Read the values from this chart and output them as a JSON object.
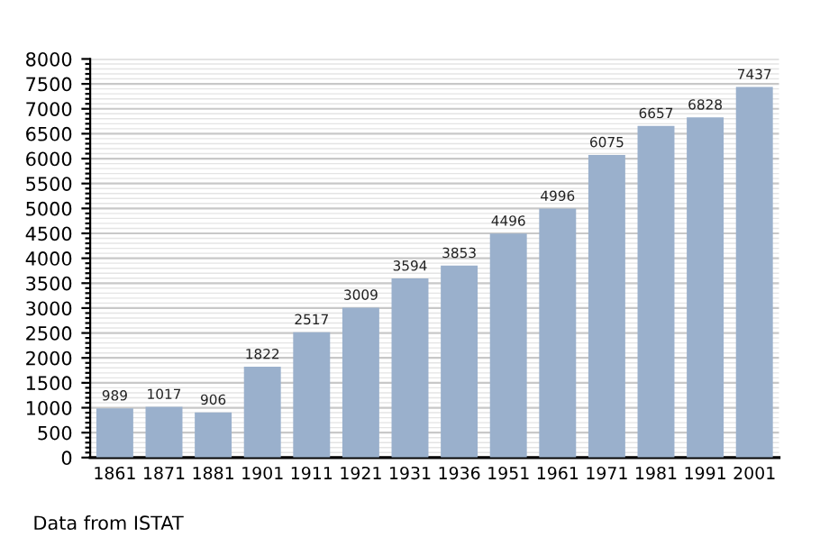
{
  "chart_data": {
    "type": "bar",
    "categories": [
      "1861",
      "1871",
      "1881",
      "1901",
      "1911",
      "1921",
      "1931",
      "1936",
      "1951",
      "1961",
      "1971",
      "1981",
      "1991",
      "2001"
    ],
    "values": [
      989,
      1017,
      906,
      1822,
      2517,
      3009,
      3594,
      3853,
      4496,
      4996,
      6075,
      6657,
      6828,
      7437
    ],
    "color": "#9ab0cc",
    "data_labels": true,
    "ylim": [
      0,
      8000
    ],
    "yticks": [
      0,
      {
        "value": 100,
        "label": null
      },
      {
        "value": 200,
        "label": null
      },
      {
        "value": 300,
        "label": null
      },
      {
        "value": 400,
        "label": null
      },
      500,
      {
        "value": 600,
        "label": null
      },
      {
        "value": 700,
        "label": null
      },
      {
        "value": 800,
        "label": null
      },
      {
        "value": 900,
        "label": null
      },
      1000,
      {
        "value": 1100,
        "label": null
      },
      {
        "value": 1200,
        "label": null
      },
      {
        "value": 1300,
        "label": null
      },
      {
        "value": 1400,
        "label": null
      },
      1500,
      {
        "value": 1600,
        "label": null
      },
      {
        "value": 1700,
        "label": null
      },
      {
        "value": 1800,
        "label": null
      },
      {
        "value": 1900,
        "label": null
      },
      2000,
      {
        "value": 2100,
        "label": null
      },
      {
        "value": 2200,
        "label": null
      },
      {
        "value": 2300,
        "label": null
      },
      {
        "value": 2400,
        "label": null
      },
      2500,
      {
        "value": 2600,
        "label": null
      },
      {
        "value": 2700,
        "label": null
      },
      {
        "value": 2800,
        "label": null
      },
      {
        "value": 2900,
        "label": null
      },
      3000,
      {
        "value": 3100,
        "label": null
      },
      {
        "value": 3200,
        "label": null
      },
      {
        "value": 3300,
        "label": null
      },
      {
        "value": 3400,
        "label": null
      },
      3500,
      {
        "value": 3600,
        "label": null
      },
      {
        "value": 3700,
        "label": null
      },
      {
        "value": 3800,
        "label": null
      },
      {
        "value": 3900,
        "label": null
      },
      4000,
      {
        "value": 4100,
        "label": null
      },
      {
        "value": 4200,
        "label": null
      },
      {
        "value": 4300,
        "label": null
      },
      {
        "value": 4400,
        "label": null
      },
      4500,
      {
        "value": 4600,
        "label": null
      },
      {
        "value": 4700,
        "label": null
      },
      {
        "value": 4800,
        "label": null
      },
      {
        "value": 4900,
        "label": null
      },
      5000,
      {
        "value": 5100,
        "label": null
      },
      {
        "value": 5200,
        "label": null
      },
      {
        "value": 5300,
        "label": null
      },
      {
        "value": 5400,
        "label": null
      },
      5500,
      {
        "value": 5600,
        "label": null
      },
      {
        "value": 5700,
        "label": null
      },
      {
        "value": 5800,
        "label": null
      },
      {
        "value": 5900,
        "label": null
      },
      6000,
      {
        "value": 6100,
        "label": null
      },
      {
        "value": 6200,
        "label": null
      },
      {
        "value": 6300,
        "label": null
      },
      {
        "value": 6400,
        "label": null
      },
      6500,
      {
        "value": 6600,
        "label": null
      },
      {
        "value": 6700,
        "label": null
      },
      {
        "value": 6800,
        "label": null
      },
      {
        "value": 6900,
        "label": null
      },
      7000,
      {
        "value": 7100,
        "label": null
      },
      {
        "value": 7200,
        "label": null
      },
      {
        "value": 7300,
        "label": null
      },
      {
        "value": 7400,
        "label": null
      },
      7500,
      {
        "value": 7600,
        "label": null
      },
      {
        "value": 7700,
        "label": null
      },
      {
        "value": 7800,
        "label": null
      },
      {
        "value": 7900,
        "label": null
      },
      8000
    ],
    "grid": "y",
    "annotations": [
      "Data from ISTAT"
    ]
  }
}
